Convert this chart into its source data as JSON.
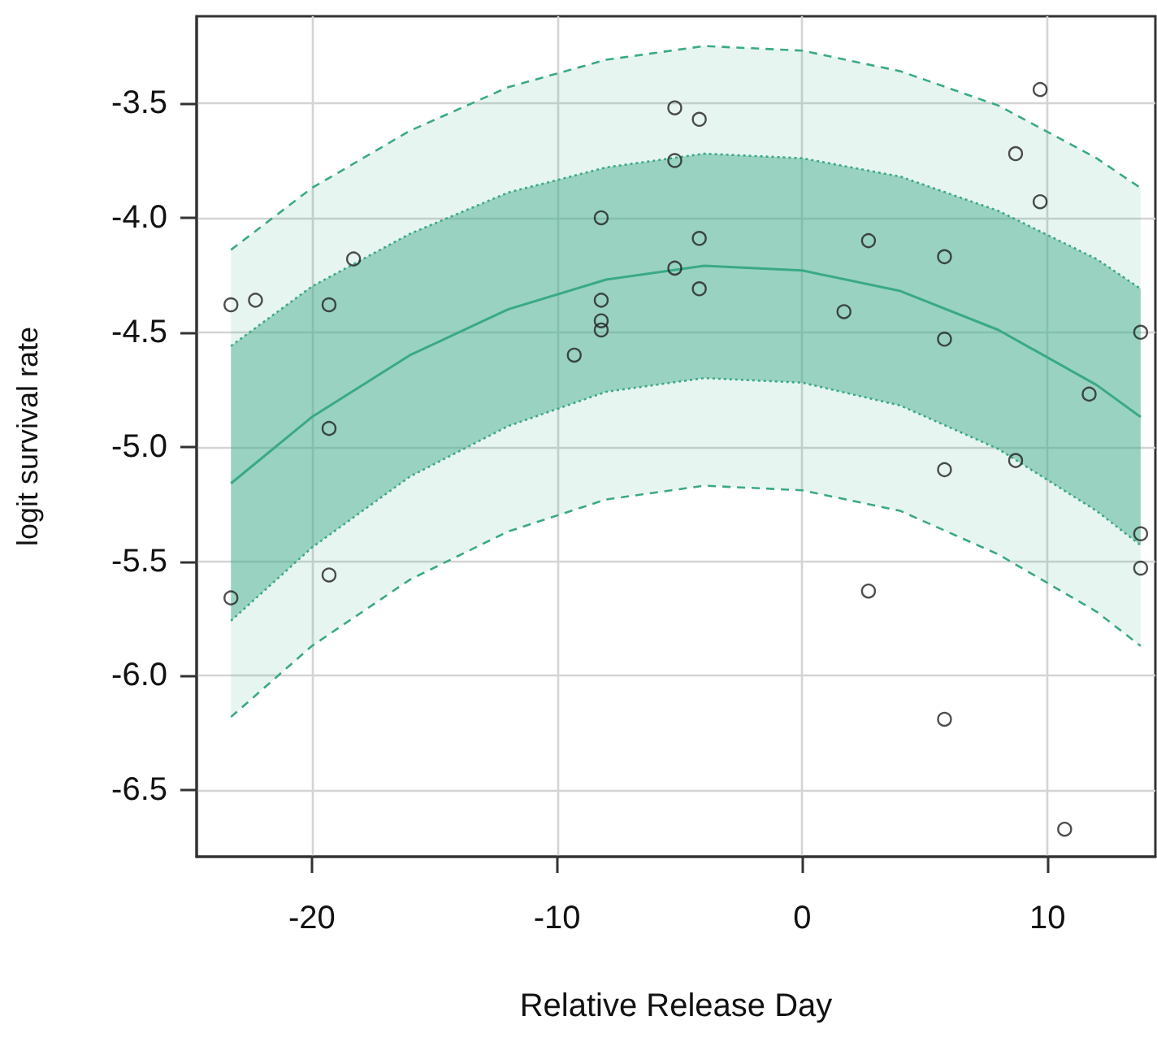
{
  "chart_data": {
    "type": "scatter",
    "xlabel": "Relative Release Day",
    "ylabel": "logit survival rate",
    "xlim": [
      -24.7,
      14.4
    ],
    "ylim": [
      -6.79,
      -3.12
    ],
    "xticks": [
      -20,
      -10,
      0,
      10
    ],
    "yticks": [
      -6.5,
      {
        "value": -6,
        "label": "-6.0"
      },
      -5.5,
      {
        "value": -5,
        "label": "-5.0"
      },
      -4.5,
      {
        "value": -4,
        "label": "-4.0"
      },
      -3.5
    ],
    "grid": true,
    "series": [
      {
        "type": "scatter",
        "color": "#222222",
        "marker": "circle",
        "x": [
          -23.3,
          -22.3,
          -19.3,
          -19.3,
          -19.3,
          -23.3,
          -18.3,
          -9.3,
          -8.2,
          -8.2,
          -8.2,
          -8.2,
          -5.2,
          -5.2,
          -5.2,
          -4.2,
          -4.2,
          -4.2,
          1.7,
          2.7,
          2.7,
          5.8,
          5.8,
          5.8,
          5.8,
          8.7,
          8.7,
          9.7,
          9.7,
          11.7,
          10.7,
          13.8,
          13.8,
          13.8
        ],
        "values": [
          -4.38,
          -4.36,
          -4.38,
          -4.92,
          -5.56,
          -5.66,
          -4.18,
          -4.6,
          -4.0,
          -4.36,
          -4.45,
          -4.49,
          -3.52,
          -3.75,
          -4.22,
          -3.57,
          -4.09,
          -4.31,
          -4.41,
          -4.1,
          -5.63,
          -4.17,
          -4.53,
          -5.1,
          -6.19,
          -3.72,
          -5.06,
          -3.44,
          -3.93,
          -4.77,
          -6.67,
          -4.5,
          -5.38,
          -5.53
        ]
      },
      {
        "type": "line",
        "color": "#3aa987",
        "line_style": "dashed",
        "marker": "none",
        "x": [
          -23.3,
          -20,
          -16,
          -12,
          -8,
          -4,
          0,
          4,
          8,
          12,
          13.8
        ],
        "values": [
          -4.14,
          -3.87,
          -3.62,
          -3.43,
          -3.31,
          -3.25,
          -3.27,
          -3.36,
          -3.51,
          -3.74,
          -3.87
        ],
        "lower": [
          -6.18,
          -5.87,
          -5.58,
          -5.37,
          -5.23,
          -5.17,
          -5.19,
          -5.28,
          -5.47,
          -5.72,
          -5.87
        ],
        "upper": [
          -4.14,
          -3.87,
          -3.62,
          -3.43,
          -3.31,
          -3.25,
          -3.27,
          -3.36,
          -3.51,
          -3.74,
          -3.87
        ]
      },
      {
        "type": "line",
        "color": "#3aa987",
        "line_style": "dashed",
        "marker": "none",
        "x": [
          -23.3,
          -20,
          -16,
          -12,
          -8,
          -4,
          0,
          4,
          8,
          12,
          13.8
        ],
        "values": [
          -6.18,
          -5.87,
          -5.58,
          -5.37,
          -5.23,
          -5.17,
          -5.19,
          -5.28,
          -5.47,
          -5.72,
          -5.87
        ]
      },
      {
        "type": "line",
        "color": "#3aa987",
        "line_style": "dotted",
        "marker": "none",
        "x": [
          -23.3,
          -20,
          -16,
          -12,
          -8,
          -4,
          0,
          4,
          8,
          12,
          13.8
        ],
        "values": [
          -4.56,
          -4.3,
          -4.07,
          -3.89,
          -3.78,
          -3.72,
          -3.74,
          -3.82,
          -3.97,
          -4.18,
          -4.31
        ]
      },
      {
        "type": "line",
        "color": "#3aa987",
        "line_style": "dotted",
        "marker": "none",
        "x": [
          -23.3,
          -20,
          -16,
          -12,
          -8,
          -4,
          0,
          4,
          8,
          12,
          13.8
        ],
        "values": [
          -5.76,
          -5.44,
          -5.13,
          -4.91,
          -4.76,
          -4.7,
          -4.72,
          -4.82,
          -5.01,
          -5.28,
          -5.43
        ]
      },
      {
        "type": "line",
        "color": "#3aa987",
        "line_style": "solid",
        "marker": "none",
        "x": [
          -23.3,
          -20,
          -16,
          -12,
          -8,
          -4,
          0,
          4,
          8,
          12,
          13.8
        ],
        "values": [
          -5.16,
          -4.87,
          -4.6,
          -4.4,
          -4.27,
          -4.21,
          -4.23,
          -4.32,
          -4.49,
          -4.73,
          -4.87
        ],
        "lower": [
          -5.76,
          -5.44,
          -5.13,
          -4.91,
          -4.76,
          -4.7,
          -4.72,
          -4.82,
          -5.01,
          -5.28,
          -5.43
        ],
        "upper": [
          -4.56,
          -4.3,
          -4.07,
          -3.89,
          -3.78,
          -3.72,
          -3.74,
          -3.82,
          -3.97,
          -4.18,
          -4.31
        ]
      }
    ]
  }
}
